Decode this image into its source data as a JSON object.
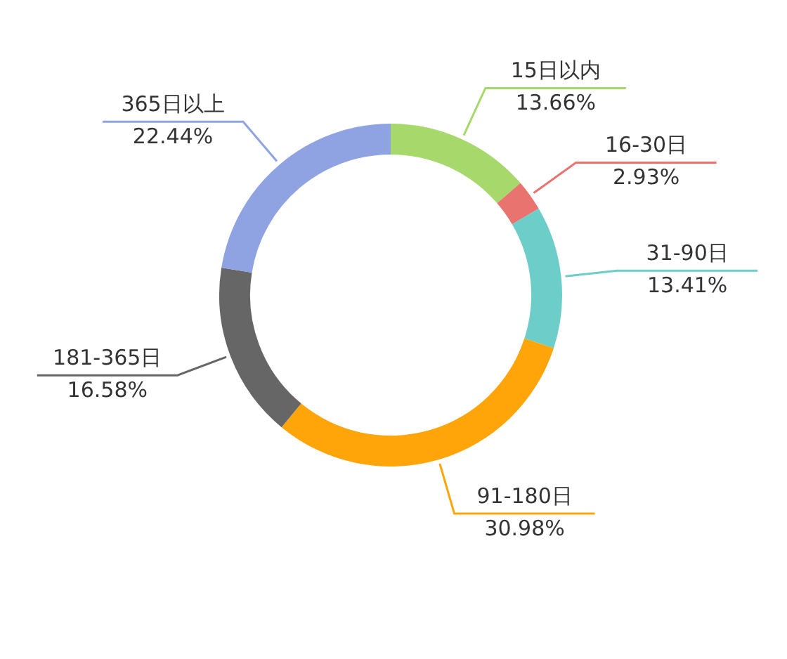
{
  "chart_data": {
    "type": "donut",
    "categories": [
      "15日以内",
      "16-30日",
      "31-90日",
      "91-180日",
      "181-365日",
      "365日以上"
    ],
    "values": [
      13.66,
      2.93,
      13.41,
      30.98,
      16.58,
      22.44
    ],
    "colors": [
      "#a6d86c",
      "#e8736f",
      "#6ccdc9",
      "#ffa50a",
      "#666666",
      "#8fa3e3"
    ],
    "value_labels": [
      "13.66%",
      "2.93%",
      "13.41%",
      "30.98%",
      "16.58%",
      "22.44%"
    ]
  }
}
